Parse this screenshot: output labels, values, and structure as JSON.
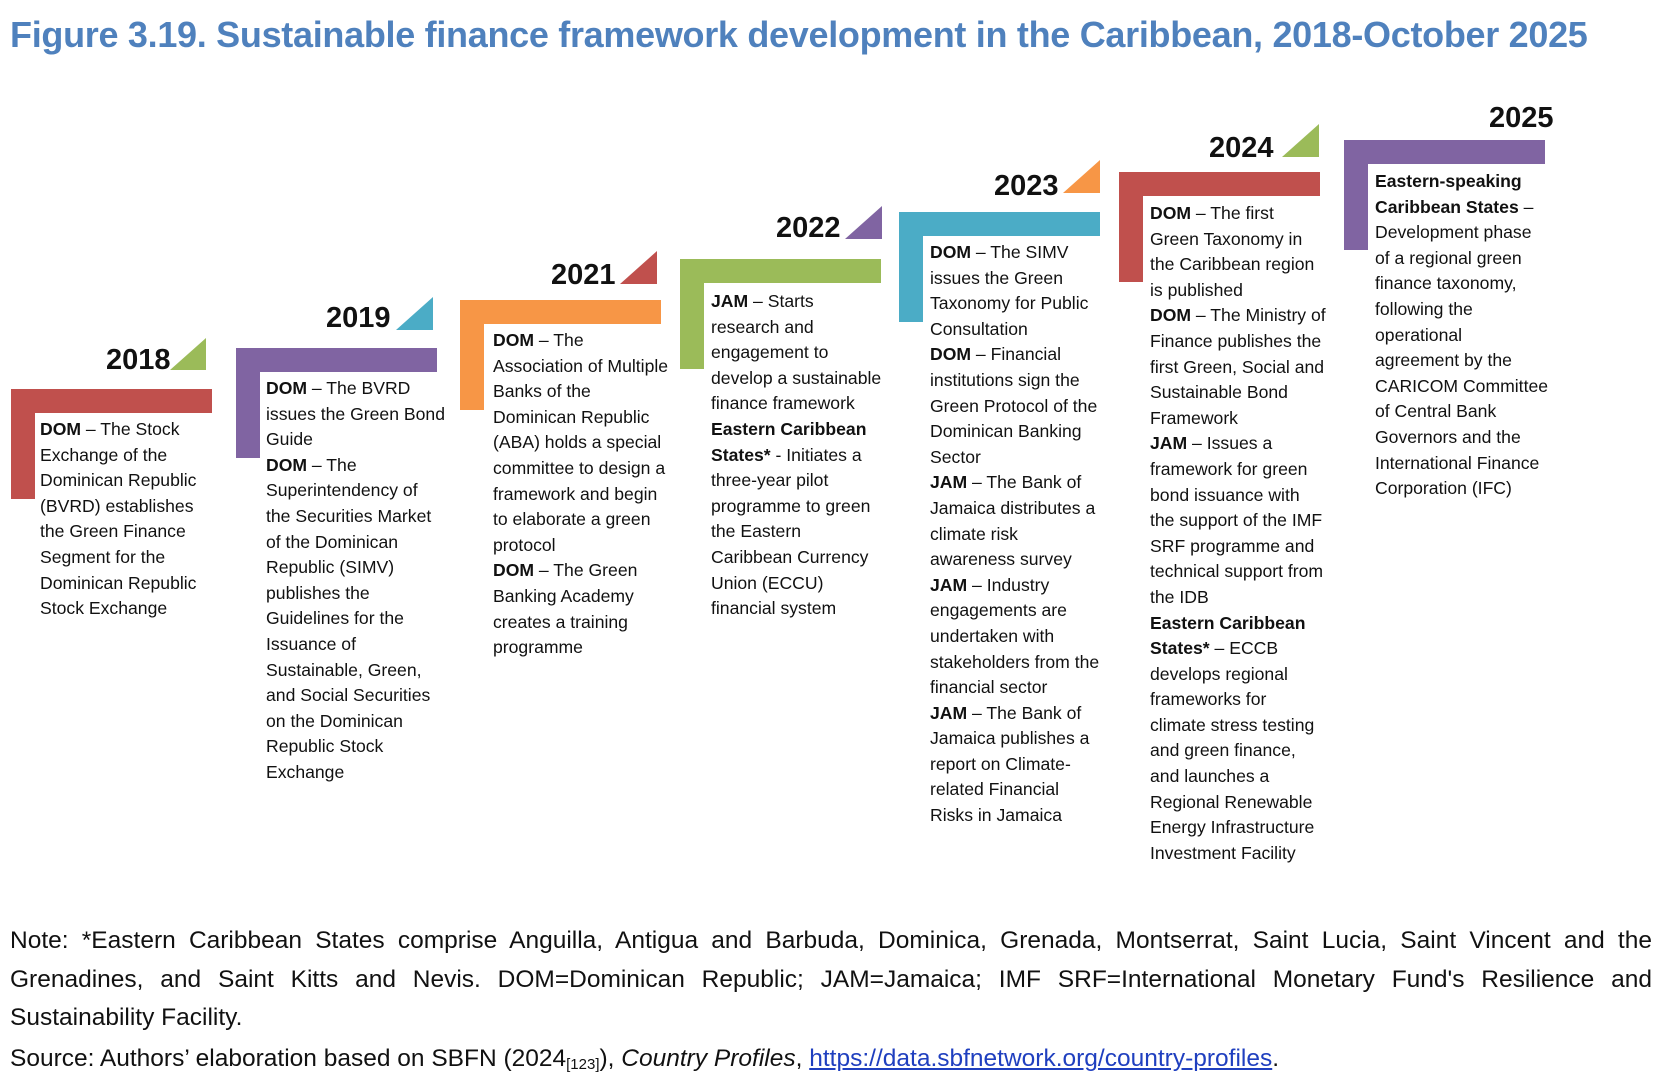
{
  "title": "Figure 3.19. Sustainable finance framework development in the Caribbean, 2018-October 2025",
  "colors": {
    "title": "#4f81bd",
    "red": "#c0504d",
    "purple": "#8064a2",
    "teal": "#4bacc6",
    "orange": "#f79646",
    "green": "#9bbb59"
  },
  "stages": [
    {
      "year": "2018",
      "bar_color": "#c0504d",
      "triangle_color": "#9bbb59",
      "entries": [
        {
          "label": "DOM",
          "text": " – The Stock Exchange of the Dominican Republic (BVRD) establishes the Green Finance Segment for the Dominican Republic Stock Exchange"
        }
      ]
    },
    {
      "year": "2019",
      "bar_color": "#8064a2",
      "triangle_color": "#4bacc6",
      "entries": [
        {
          "label": "DOM",
          "text": " – The BVRD issues the Green Bond Guide"
        },
        {
          "label": "DOM",
          "text": " – The Superintendency of the Securities Market of the Dominican Republic (SIMV) publishes the Guidelines for the Issuance of Sustainable, Green, and Social Securities on the Dominican Republic Stock Exchange"
        }
      ]
    },
    {
      "year": "2021",
      "bar_color": "#f79646",
      "triangle_color": "#c0504d",
      "entries": [
        {
          "label": "DOM",
          "text": " – The Association of Multiple Banks of the Dominican Republic (ABA) holds a special committee to design a framework and begin to elaborate a green protocol"
        },
        {
          "label": "DOM",
          "text": " – The Green Banking Academy creates a training programme"
        }
      ]
    },
    {
      "year": "2022",
      "bar_color": "#9bbb59",
      "triangle_color": "#8064a2",
      "entries": [
        {
          "label": "JAM",
          "text": " – Starts research and engagement to develop a sustainable finance framework"
        },
        {
          "label": "Eastern Caribbean States*",
          "text": " - Initiates a three-year pilot programme to green the Eastern Caribbean Currency Union (ECCU) financial system"
        }
      ]
    },
    {
      "year": "2023",
      "bar_color": "#4bacc6",
      "triangle_color": "#f79646",
      "entries": [
        {
          "label": "DOM",
          "text": " – The SIMV issues the Green Taxonomy for Public Consultation"
        },
        {
          "label": "DOM",
          "text": " – Financial institutions sign the Green Protocol of the Dominican Banking Sector"
        },
        {
          "label": "JAM",
          "text": " – The Bank of Jamaica distributes a climate risk awareness survey"
        },
        {
          "label": "JAM",
          "text": " – Industry engagements are undertaken with stakeholders from the financial sector"
        },
        {
          "label": "JAM",
          "text": " – The Bank of Jamaica publishes a report on Climate-related Financial Risks in Jamaica"
        }
      ]
    },
    {
      "year": "2024",
      "bar_color": "#c0504d",
      "triangle_color": "#9bbb59",
      "entries": [
        {
          "label": "DOM",
          "text": " – The first Green Taxonomy in the Caribbean region is published"
        },
        {
          "label": "DOM",
          "text": " – The Ministry of Finance publishes the first Green, Social and Sustainable Bond Framework"
        },
        {
          "label": "JAM",
          "text": " – Issues a framework for green bond issuance with the support of the IMF SRF programme and technical support from the IDB"
        },
        {
          "label": "Eastern Caribbean States*",
          "text": " – ECCB develops regional frameworks for climate stress testing and green finance, and launches a Regional Renewable Energy Infrastructure Investment Facility"
        }
      ]
    },
    {
      "year": "2025",
      "bar_color": "#8064a2",
      "triangle_color": "",
      "entries": [
        {
          "label": "Eastern-speaking Caribbean States",
          "text": " – Development phase of a regional green finance taxonomy, following the operational agreement by the CARICOM Committee of Central Bank Governors and the International Finance Corporation (IFC)"
        }
      ]
    }
  ],
  "note": "Note: *Eastern Caribbean States comprise Anguilla, Antigua and Barbuda, Dominica, Grenada, Montserrat, Saint Lucia, Saint Vincent and the Grenadines, and Saint Kitts and Nevis. DOM=Dominican Republic; JAM=Jamaica; IMF SRF=International Monetary Fund's Resilience and Sustainability Facility.",
  "source": {
    "prefix": "Source: Authors’ elaboration based on SBFN (2024",
    "ref": "[123]",
    "middle": "), ",
    "italic": "Country Profiles",
    "comma": ", ",
    "link": "https://data.sbfnetwork.org/country-profiles",
    "end": "."
  }
}
